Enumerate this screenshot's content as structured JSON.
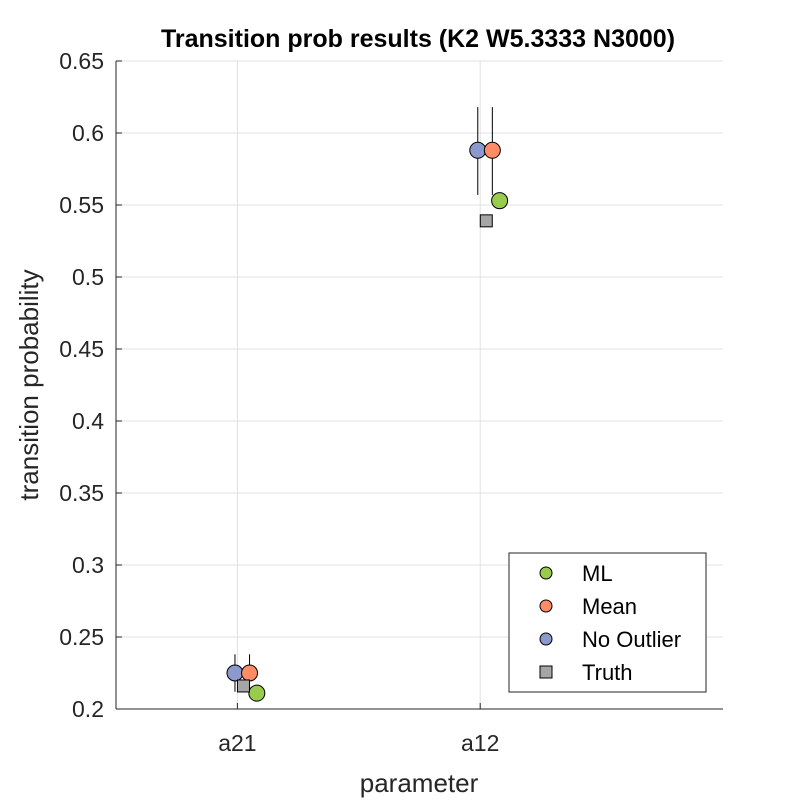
{
  "chart_data": {
    "type": "scatter",
    "title": "Transition prob results (K2 W5.3333 N3000)",
    "xlabel": "parameter",
    "ylabel": "transition probability",
    "categories": [
      "a21",
      "a12"
    ],
    "ylim": [
      0.2,
      0.65
    ],
    "yticks": [
      0.2,
      0.25,
      0.3,
      0.35,
      0.4,
      0.45,
      0.5,
      0.55,
      0.6,
      0.65
    ],
    "ytick_labels": [
      "0.2",
      "0.25",
      "0.3",
      "0.35",
      "0.4",
      "0.45",
      "0.5",
      "0.55",
      "0.6",
      "0.65"
    ],
    "grid": true,
    "legend_position": "bottom-right",
    "series": [
      {
        "name": "ML",
        "marker": "circle",
        "color": "#99cc4d",
        "values": [
          0.211,
          0.553
        ],
        "offset": 0.08,
        "error": null
      },
      {
        "name": "Mean",
        "marker": "circle",
        "color": "#ff8c66",
        "values": [
          0.225,
          0.588
        ],
        "offset": 0.05,
        "error": [
          [
            0.214,
            0.238
          ],
          [
            0.557,
            0.618
          ]
        ]
      },
      {
        "name": "No Outlier",
        "marker": "circle",
        "color": "#8c99cc",
        "values": [
          0.225,
          0.588
        ],
        "offset": -0.01,
        "error": [
          [
            0.212,
            0.238
          ],
          [
            0.557,
            0.618
          ]
        ]
      },
      {
        "name": "Truth",
        "marker": "square",
        "color": "#a6a6a6",
        "values": [
          0.216,
          0.539
        ],
        "offset": 0.025,
        "error": null
      }
    ]
  }
}
